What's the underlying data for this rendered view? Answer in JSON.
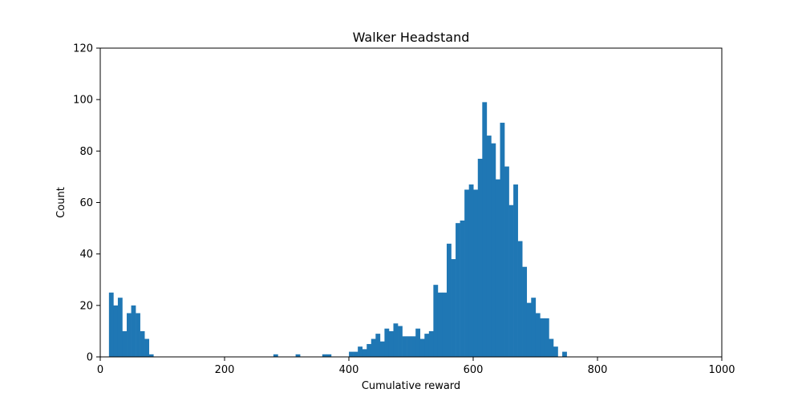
{
  "chart_data": {
    "type": "bar",
    "title": "Walker Headstand",
    "xlabel": "Cumulative reward",
    "ylabel": "Count",
    "xlim": [
      0,
      1000
    ],
    "ylim": [
      0,
      120
    ],
    "xticks": [
      0,
      200,
      400,
      600,
      800,
      1000
    ],
    "yticks": [
      0,
      20,
      40,
      60,
      80,
      100,
      120
    ],
    "grid": false,
    "bar_color": "#1f77b4",
    "bin_width": 7.15,
    "bin_start": 14.0,
    "counts": [
      25,
      20,
      23,
      10,
      17,
      20,
      17,
      10,
      7,
      1,
      0,
      0,
      0,
      0,
      0,
      0,
      0,
      0,
      0,
      0,
      0,
      0,
      0,
      0,
      0,
      0,
      0,
      0,
      0,
      0,
      0,
      0,
      0,
      0,
      0,
      0,
      0,
      1,
      0,
      0,
      0,
      0,
      1,
      0,
      0,
      0,
      0,
      0,
      1,
      1,
      0,
      0,
      0,
      0,
      2,
      2,
      4,
      3,
      5,
      7,
      9,
      6,
      11,
      10,
      13,
      12,
      8,
      8,
      8,
      11,
      7,
      9,
      10,
      28,
      25,
      25,
      44,
      38,
      52,
      53,
      65,
      67,
      65,
      77,
      99,
      86,
      83,
      69,
      91,
      74,
      59,
      67,
      45,
      35,
      21,
      23,
      17,
      15,
      15,
      7,
      4,
      0,
      2
    ]
  }
}
